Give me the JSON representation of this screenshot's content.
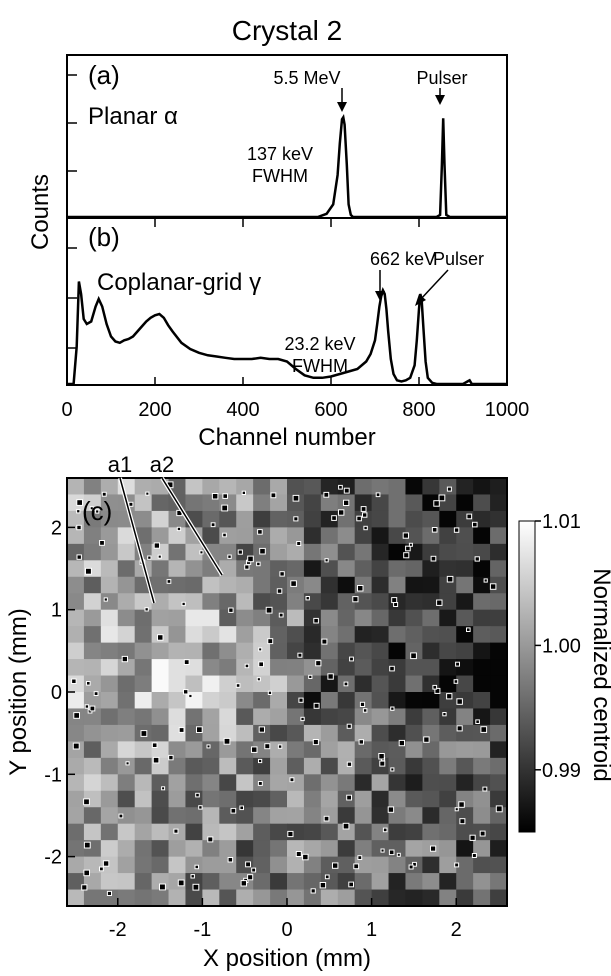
{
  "figure_title": "Crystal 2",
  "chart_data": [
    {
      "type": "line",
      "panel_label": "(a)",
      "inset_text": "Planar α",
      "ylabel": "Counts",
      "xlim": [
        0,
        1000
      ],
      "peaks": [
        {
          "label": "5.5 MeV",
          "x": 628,
          "fwhm_label_1": "137 keV",
          "fwhm_label_2": "FWHM"
        },
        {
          "label": "Pulser",
          "x": 855
        }
      ],
      "x": [
        0,
        570,
        590,
        605,
        615,
        620,
        625,
        628,
        631,
        636,
        640,
        645,
        650,
        840,
        848,
        852,
        855,
        858,
        862,
        870,
        1000
      ],
      "y": [
        0,
        0,
        0.03,
        0.12,
        0.4,
        0.7,
        0.93,
        0.95,
        0.88,
        0.5,
        0.12,
        0.02,
        0,
        0,
        0.02,
        0.5,
        0.94,
        0.5,
        0.02,
        0,
        0
      ]
    },
    {
      "type": "line",
      "panel_label": "(b)",
      "inset_text": "Coplanar-grid γ",
      "xlabel": "Channel number",
      "xlim": [
        0,
        1000
      ],
      "xticks": [
        "0",
        "200",
        "400",
        "600",
        "800",
        "1000"
      ],
      "peaks": [
        {
          "label": "662 keV",
          "x": 720,
          "fwhm_label_1": "23.2 keV",
          "fwhm_label_2": "FWHM"
        },
        {
          "label": "Pulser",
          "x": 805
        }
      ],
      "x": [
        0,
        15,
        22,
        27,
        32,
        38,
        45,
        55,
        65,
        72,
        80,
        90,
        100,
        110,
        120,
        130,
        140,
        150,
        160,
        170,
        180,
        190,
        200,
        210,
        220,
        230,
        240,
        260,
        280,
        300,
        320,
        340,
        360,
        380,
        400,
        420,
        440,
        460,
        480,
        500,
        520,
        540,
        560,
        580,
        600,
        620,
        640,
        660,
        680,
        690,
        700,
        705,
        710,
        715,
        718,
        722,
        726,
        730,
        736,
        742,
        750,
        760,
        770,
        780,
        790,
        795,
        800,
        803,
        806,
        810,
        815,
        820,
        830,
        840,
        860,
        900,
        910,
        915,
        920,
        1000
      ],
      "y": [
        0,
        0,
        0.3,
        0.82,
        0.72,
        0.52,
        0.48,
        0.5,
        0.62,
        0.68,
        0.62,
        0.48,
        0.38,
        0.34,
        0.33,
        0.35,
        0.36,
        0.38,
        0.42,
        0.46,
        0.5,
        0.53,
        0.55,
        0.56,
        0.53,
        0.47,
        0.42,
        0.33,
        0.28,
        0.25,
        0.23,
        0.22,
        0.21,
        0.2,
        0.2,
        0.2,
        0.21,
        0.2,
        0.2,
        0.18,
        0.12,
        0.07,
        0.05,
        0.05,
        0.06,
        0.08,
        0.1,
        0.12,
        0.18,
        0.24,
        0.35,
        0.48,
        0.62,
        0.72,
        0.75,
        0.72,
        0.6,
        0.42,
        0.2,
        0.08,
        0.03,
        0.02,
        0.03,
        0.05,
        0.15,
        0.35,
        0.6,
        0.72,
        0.68,
        0.45,
        0.18,
        0.05,
        0.01,
        0,
        0,
        0,
        0.02,
        0.03,
        0,
        0
      ]
    },
    {
      "type": "heatmap",
      "panel_label": "(c)",
      "xlabel": "X position (mm)",
      "ylabel": "Y position (mm)",
      "xlim": [
        -2.6,
        2.6
      ],
      "ylim": [
        -2.6,
        2.6
      ],
      "xticks": [
        "-2",
        "-1",
        "0",
        "1",
        "2"
      ],
      "yticks": [
        "-2",
        "-1",
        "0",
        "1",
        "2"
      ],
      "grid_size": 26,
      "colorbar": {
        "label": "Normalized centroid",
        "min": 0.985,
        "max": 1.01,
        "ticks": [
          "1.01",
          "1.00",
          "0.99"
        ]
      },
      "annotations": [
        {
          "label": "a1",
          "x": -1.45,
          "y": 1.05
        },
        {
          "label": "a2",
          "x": -0.8,
          "y": 1.35
        }
      ],
      "inclusion_markers": "white-outlined black dots scattered across the map"
    }
  ]
}
